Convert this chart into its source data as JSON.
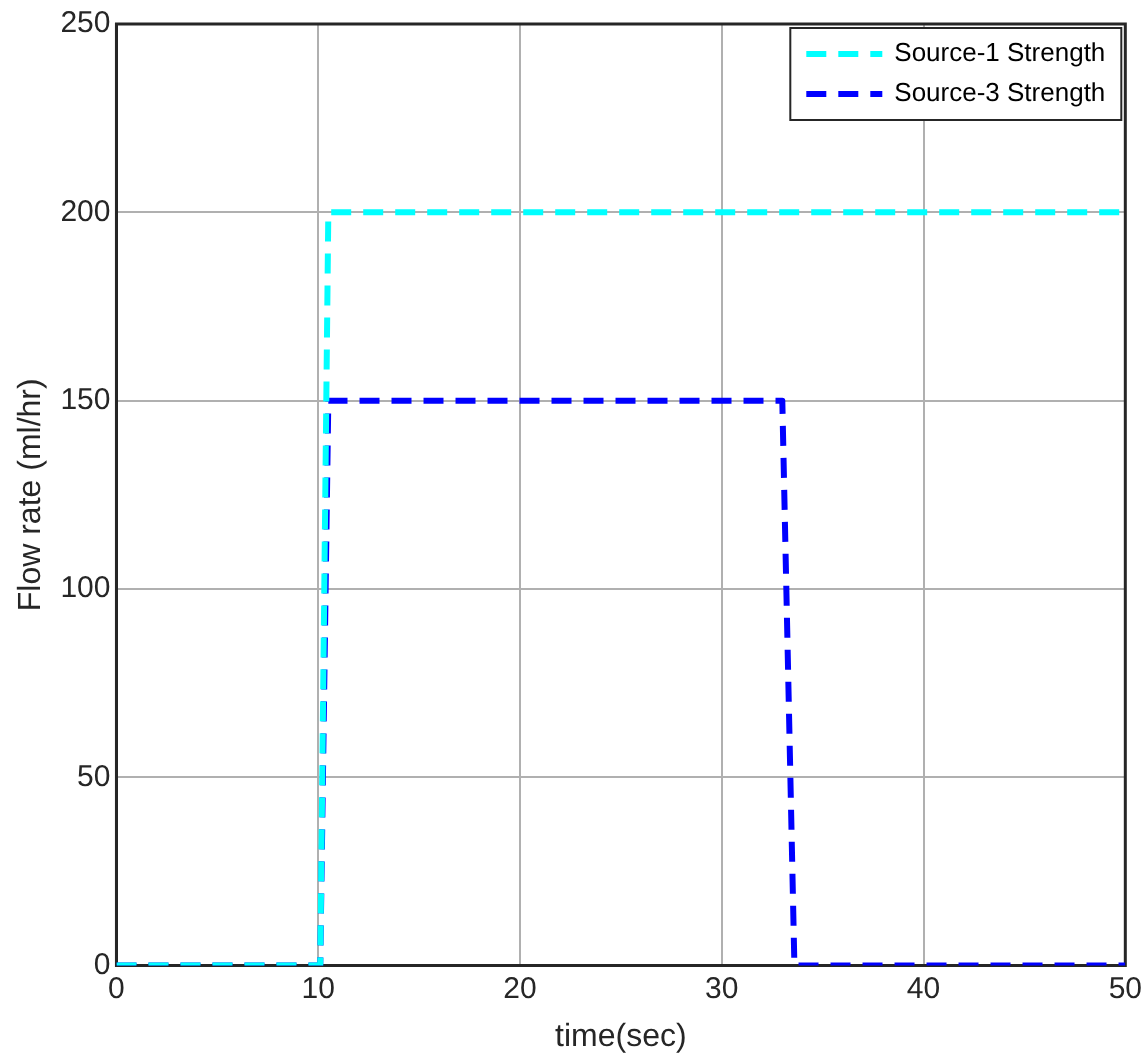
{
  "chart_data": {
    "type": "line",
    "xlabel": "time(sec)",
    "ylabel": "Flow rate (ml/hr)",
    "xlim": [
      0,
      50
    ],
    "ylim": [
      0,
      250
    ],
    "xticks": [
      0,
      10,
      20,
      30,
      40,
      50
    ],
    "yticks": [
      0,
      50,
      100,
      150,
      200,
      250
    ],
    "series": [
      {
        "name": "Source-1 Strength",
        "color": "#00ffff",
        "x": [
          0,
          10.1,
          10.5,
          50
        ],
        "values": [
          0,
          0,
          200,
          200
        ]
      },
      {
        "name": "Source-3 Strength",
        "color": "#0000ff",
        "x": [
          0,
          10.1,
          10.5,
          33,
          33.6,
          50
        ],
        "values": [
          0,
          0,
          150,
          150,
          0,
          0
        ]
      }
    ],
    "grid": true,
    "legend": "top right",
    "line_style": "dashed",
    "marker": "none"
  }
}
